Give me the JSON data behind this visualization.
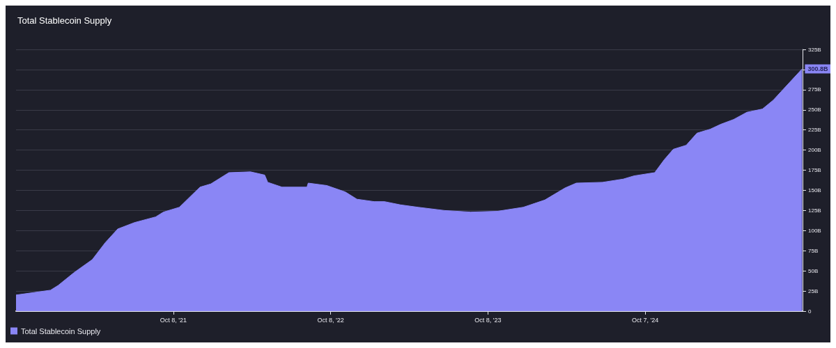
{
  "chart_data": {
    "type": "area",
    "title": "Total Stablecoin Supply",
    "x": [
      "2020-10-08",
      "2020-12-27",
      "2021-01-14",
      "2021-02-20",
      "2021-04-03",
      "2021-05-03",
      "2021-06-01",
      "2021-07-10",
      "2021-08-28",
      "2021-09-15",
      "2021-10-22",
      "2021-12-09",
      "2022-01-03",
      "2022-02-14",
      "2022-04-05",
      "2022-05-08",
      "2022-05-15",
      "2022-06-17",
      "2022-08-14",
      "2022-08-17",
      "2022-09-29",
      "2022-11-11",
      "2022-12-08",
      "2023-01-17",
      "2023-02-10",
      "2023-03-19",
      "2023-04-29",
      "2023-06-29",
      "2023-08-29",
      "2023-10-30",
      "2023-12-29",
      "2024-02-17",
      "2024-04-04",
      "2024-04-30",
      "2024-06-30",
      "2024-08-17",
      "2024-09-11",
      "2024-10-29",
      "2024-11-20",
      "2024-12-11",
      "2025-01-10",
      "2025-02-04",
      "2025-03-07",
      "2025-03-31",
      "2025-04-30",
      "2025-05-31",
      "2025-07-06",
      "2025-07-31",
      "2025-08-31",
      "2025-10-06"
    ],
    "series": [
      {
        "name": "Total Stablecoin Supply",
        "color": "#8a86f5",
        "values": [
          20,
          26,
          32,
          48,
          64,
          85,
          102,
          110,
          117,
          123,
          129,
          154,
          158,
          172,
          173,
          169,
          160,
          154,
          154,
          159,
          156,
          148,
          139,
          136,
          136,
          132,
          129,
          125,
          123,
          124,
          129,
          138,
          153,
          159,
          160,
          164,
          168,
          172,
          188,
          201,
          206,
          221,
          226,
          232,
          238,
          247,
          251,
          262,
          280,
          300.8
        ],
        "value_labels": [
          null,
          null,
          null,
          null,
          null,
          null,
          null,
          null,
          null,
          null,
          null,
          null,
          null,
          null,
          null,
          null,
          null,
          null,
          null,
          null,
          null,
          null,
          null,
          null,
          null,
          null,
          null,
          null,
          null,
          null,
          null,
          null,
          null,
          null,
          null,
          null,
          null,
          null,
          null,
          null,
          null,
          null,
          null,
          null,
          null,
          null,
          null,
          null,
          null,
          "300.8B"
        ]
      }
    ],
    "xlim": [
      "2020-10-08",
      "2025-10-07"
    ],
    "xticks": [
      {
        "value": "2021-10-08",
        "label": "Oct 8, '21"
      },
      {
        "value": "2022-10-08",
        "label": "Oct 8, '22"
      },
      {
        "value": "2023-10-08",
        "label": "Oct 8, '23"
      },
      {
        "value": "2024-10-07",
        "label": "Oct 7, '24"
      }
    ],
    "ylim": [
      0,
      325
    ],
    "yticks": [
      {
        "value": 0,
        "label": "0"
      },
      {
        "value": 25,
        "label": "25B"
      },
      {
        "value": 50,
        "label": "50B"
      },
      {
        "value": 75,
        "label": "75B"
      },
      {
        "value": 100,
        "label": "100B"
      },
      {
        "value": 125,
        "label": "125B"
      },
      {
        "value": 150,
        "label": "150B"
      },
      {
        "value": 175,
        "label": "175B"
      },
      {
        "value": 200,
        "label": "200B"
      },
      {
        "value": 225,
        "label": "225B"
      },
      {
        "value": 250,
        "label": "250B"
      },
      {
        "value": 275,
        "label": "275B"
      },
      {
        "value": 300,
        "label": null
      },
      {
        "value": 325,
        "label": "325B"
      }
    ],
    "grid": "y",
    "legend": "bottom left",
    "marker": "none"
  }
}
